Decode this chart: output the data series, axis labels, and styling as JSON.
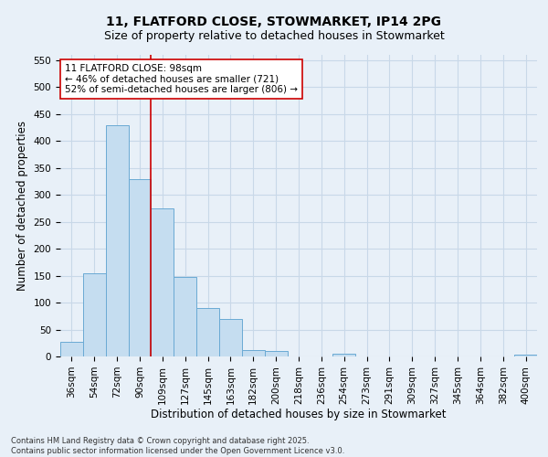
{
  "title_line1": "11, FLATFORD CLOSE, STOWMARKET, IP14 2PG",
  "title_line2": "Size of property relative to detached houses in Stowmarket",
  "xlabel": "Distribution of detached houses by size in Stowmarket",
  "ylabel": "Number of detached properties",
  "categories": [
    "36sqm",
    "54sqm",
    "72sqm",
    "90sqm",
    "109sqm",
    "127sqm",
    "145sqm",
    "163sqm",
    "182sqm",
    "200sqm",
    "218sqm",
    "236sqm",
    "254sqm",
    "273sqm",
    "291sqm",
    "309sqm",
    "327sqm",
    "345sqm",
    "364sqm",
    "382sqm",
    "400sqm"
  ],
  "values": [
    28,
    155,
    430,
    330,
    275,
    147,
    90,
    70,
    12,
    10,
    0,
    0,
    5,
    0,
    0,
    0,
    0,
    0,
    0,
    0,
    3
  ],
  "bar_color": "#c5ddf0",
  "bar_edge_color": "#6aaad4",
  "grid_color": "#c8d8e8",
  "background_color": "#e8f0f8",
  "vline_color": "#cc0000",
  "annotation_text": "11 FLATFORD CLOSE: 98sqm\n← 46% of detached houses are smaller (721)\n52% of semi-detached houses are larger (806) →",
  "annotation_box_color": "#ffffff",
  "annotation_box_edge": "#cc0000",
  "ylim": [
    0,
    560
  ],
  "yticks": [
    0,
    50,
    100,
    150,
    200,
    250,
    300,
    350,
    400,
    450,
    500,
    550
  ],
  "footnote": "Contains HM Land Registry data © Crown copyright and database right 2025.\nContains public sector information licensed under the Open Government Licence v3.0.",
  "title_fontsize": 10,
  "subtitle_fontsize": 9,
  "axis_label_fontsize": 8.5,
  "tick_fontsize": 7.5,
  "annotation_fontsize": 7.5,
  "footnote_fontsize": 6
}
